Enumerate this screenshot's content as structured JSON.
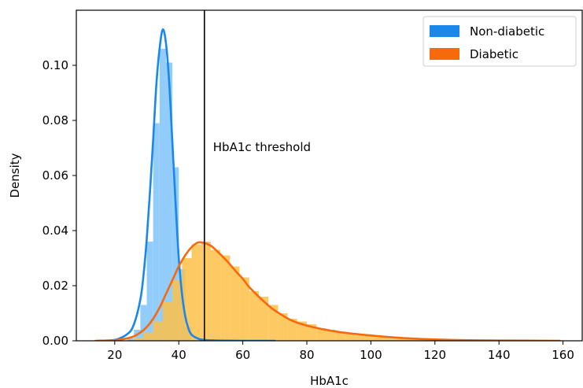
{
  "chart_data": {
    "type": "histogram-density",
    "title": "",
    "xlabel": "HbA1c",
    "ylabel": "Density",
    "xlim": [
      8,
      166
    ],
    "ylim": [
      0,
      0.12
    ],
    "xticks": [
      20,
      40,
      60,
      80,
      100,
      120,
      140,
      160
    ],
    "xtick_labels": [
      "20",
      "40",
      "60",
      "80",
      "100",
      "120",
      "140",
      "160"
    ],
    "yticks": [
      0,
      0.02,
      0.04,
      0.06,
      0.08,
      0.1
    ],
    "ytick_labels": [
      "0.00",
      "0.02",
      "0.04",
      "0.06",
      "0.08",
      "0.10"
    ],
    "legend_position": "top-right",
    "threshold": {
      "x": 48,
      "label": "HbA1c threshold"
    },
    "series": [
      {
        "name": "Non-diabetic",
        "color": "#1a87ea",
        "fill_color": "#8cc9fb",
        "bin_width": 2,
        "bins": [
          {
            "x0": 24,
            "v": 0.001
          },
          {
            "x0": 26,
            "v": 0.004
          },
          {
            "x0": 28,
            "v": 0.013
          },
          {
            "x0": 30,
            "v": 0.036
          },
          {
            "x0": 32,
            "v": 0.079
          },
          {
            "x0": 34,
            "v": 0.106
          },
          {
            "x0": 36,
            "v": 0.101
          },
          {
            "x0": 38,
            "v": 0.063
          },
          {
            "x0": 40,
            "v": 0.026
          },
          {
            "x0": 42,
            "v": 0.005
          }
        ],
        "curve": {
          "x": [
            15,
            20,
            24,
            26,
            28,
            29,
            30,
            31,
            32,
            33,
            34,
            35,
            36,
            37,
            38,
            39,
            40,
            41,
            42,
            43,
            44,
            46,
            48,
            52,
            60,
            70
          ],
          "y": [
            0,
            0.0003,
            0.0025,
            0.006,
            0.015,
            0.024,
            0.037,
            0.054,
            0.073,
            0.093,
            0.106,
            0.113,
            0.108,
            0.094,
            0.072,
            0.05,
            0.03,
            0.017,
            0.009,
            0.0045,
            0.0022,
            0.0008,
            0.0003,
            0.0001,
            0,
            0
          ]
        }
      },
      {
        "name": "Diabetic",
        "color": "#f66a0b",
        "fill_color": "#fdbf48",
        "bin_width": 3,
        "bins": [
          {
            "x0": 26,
            "v": 0.001
          },
          {
            "x0": 29,
            "v": 0.003
          },
          {
            "x0": 32,
            "v": 0.007
          },
          {
            "x0": 35,
            "v": 0.014
          },
          {
            "x0": 38,
            "v": 0.022
          },
          {
            "x0": 41,
            "v": 0.03
          },
          {
            "x0": 44,
            "v": 0.035
          },
          {
            "x0": 47,
            "v": 0.036
          },
          {
            "x0": 50,
            "v": 0.033
          },
          {
            "x0": 53,
            "v": 0.031
          },
          {
            "x0": 56,
            "v": 0.027
          },
          {
            "x0": 59,
            "v": 0.023
          },
          {
            "x0": 62,
            "v": 0.018
          },
          {
            "x0": 65,
            "v": 0.016
          },
          {
            "x0": 68,
            "v": 0.013
          },
          {
            "x0": 71,
            "v": 0.01
          },
          {
            "x0": 74,
            "v": 0.008
          },
          {
            "x0": 77,
            "v": 0.007
          },
          {
            "x0": 80,
            "v": 0.006
          },
          {
            "x0": 83,
            "v": 0.0045
          },
          {
            "x0": 86,
            "v": 0.004
          },
          {
            "x0": 89,
            "v": 0.003
          },
          {
            "x0": 92,
            "v": 0.0025
          },
          {
            "x0": 95,
            "v": 0.002
          },
          {
            "x0": 98,
            "v": 0.0017
          },
          {
            "x0": 101,
            "v": 0.0014
          },
          {
            "x0": 104,
            "v": 0.0012
          },
          {
            "x0": 107,
            "v": 0.0009
          },
          {
            "x0": 110,
            "v": 0.0007
          },
          {
            "x0": 113,
            "v": 0.0005
          },
          {
            "x0": 116,
            "v": 0.0004
          },
          {
            "x0": 119,
            "v": 0.0003
          }
        ],
        "curve": {
          "x": [
            14,
            20,
            25,
            28,
            30,
            32,
            34,
            36,
            38,
            40,
            42,
            44,
            46,
            48,
            50,
            52,
            55,
            58,
            60,
            62,
            65,
            68,
            70,
            75,
            80,
            85,
            90,
            95,
            100,
            105,
            110,
            115,
            120,
            130,
            140,
            150,
            159
          ],
          "y": [
            0,
            0.0002,
            0.0012,
            0.003,
            0.005,
            0.008,
            0.012,
            0.017,
            0.022,
            0.027,
            0.031,
            0.034,
            0.0357,
            0.0355,
            0.0345,
            0.0325,
            0.029,
            0.025,
            0.0225,
            0.0195,
            0.016,
            0.0128,
            0.011,
            0.0075,
            0.0055,
            0.0042,
            0.0032,
            0.0025,
            0.0019,
            0.0014,
            0.001,
            0.0007,
            0.0005,
            0.0002,
            0.0001,
            5e-05,
            0
          ]
        }
      }
    ]
  }
}
